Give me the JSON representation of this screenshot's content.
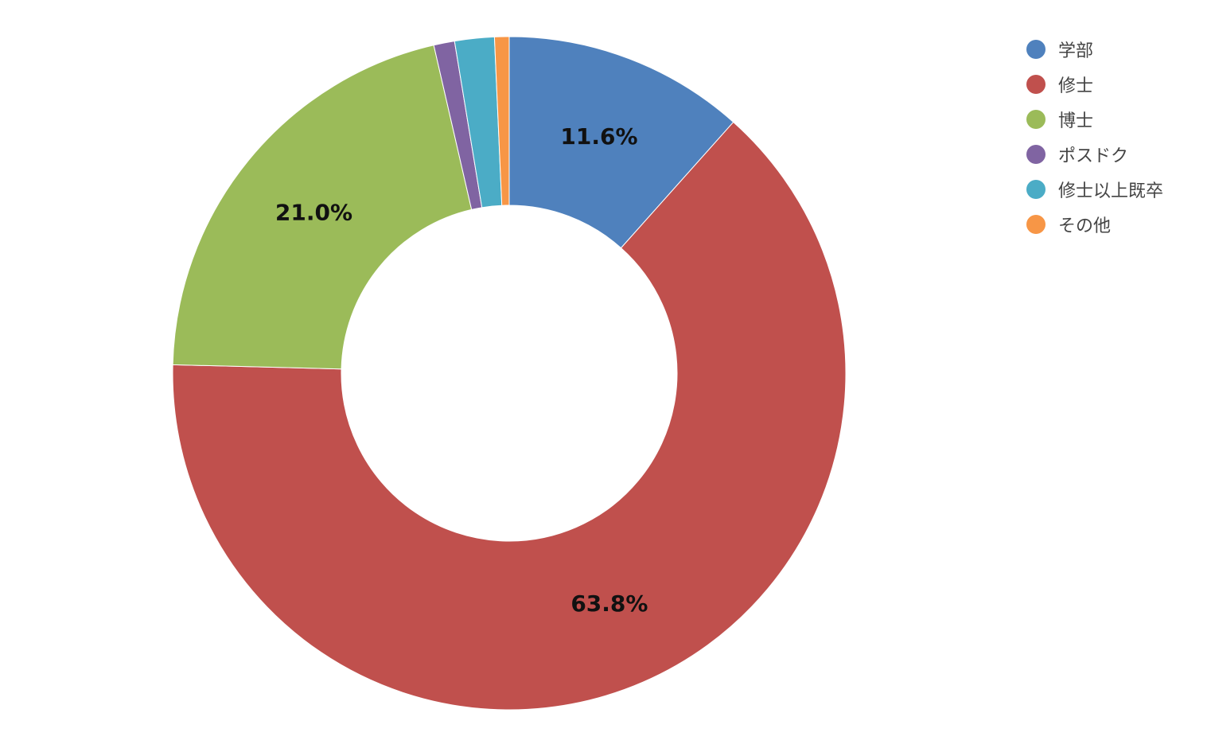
{
  "chart_data": {
    "type": "pie",
    "variant": "donut",
    "title": "",
    "categories": [
      "学部",
      "修士",
      "博士",
      "ポスドク",
      "修士以上既卒",
      "その他"
    ],
    "values": [
      11.6,
      63.8,
      21.0,
      1.0,
      1.9,
      0.7
    ],
    "unit": "%",
    "colors": [
      "#4F81BD",
      "#C0504D",
      "#9BBB59",
      "#8064A2",
      "#4BACC6",
      "#F79646"
    ],
    "data_labels": [
      "11.6%",
      "63.8%",
      "21.0%",
      "",
      "",
      ""
    ],
    "start_angle_deg": 0,
    "direction": "clockwise",
    "legend_position": "top-right",
    "grid": false
  }
}
